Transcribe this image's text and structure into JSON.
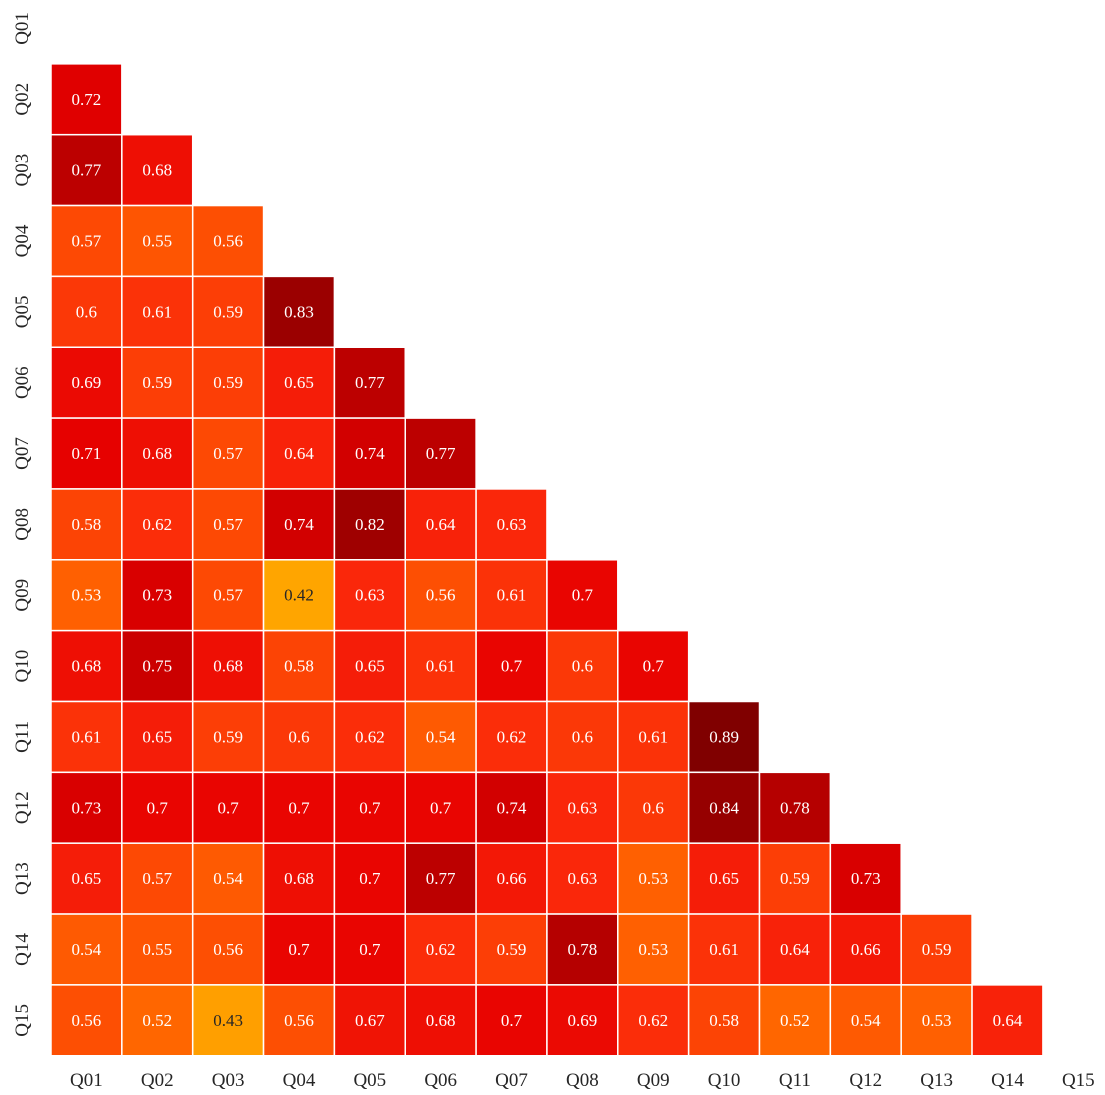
{
  "chart_data": {
    "type": "heatmap",
    "title": "",
    "xlabel": "",
    "ylabel": "",
    "mask": "upper-triangle-including-diagonal",
    "colormap": "autumn_r",
    "color_range": [
      0.42,
      0.89
    ],
    "x_labels": [
      "Q01",
      "Q02",
      "Q03",
      "Q04",
      "Q05",
      "Q06",
      "Q07",
      "Q08",
      "Q09",
      "Q10",
      "Q11",
      "Q12",
      "Q13",
      "Q14",
      "Q15"
    ],
    "y_labels": [
      "Q01",
      "Q02",
      "Q03",
      "Q04",
      "Q05",
      "Q06",
      "Q07",
      "Q08",
      "Q09",
      "Q10",
      "Q11",
      "Q12",
      "Q13",
      "Q14",
      "Q15"
    ],
    "rows": [
      [],
      [
        "0.72"
      ],
      [
        "0.77",
        "0.68"
      ],
      [
        "0.57",
        "0.55",
        "0.56"
      ],
      [
        "0.6",
        "0.61",
        "0.59",
        "0.83"
      ],
      [
        "0.69",
        "0.59",
        "0.59",
        "0.65",
        "0.77"
      ],
      [
        "0.71",
        "0.68",
        "0.57",
        "0.64",
        "0.74",
        "0.77"
      ],
      [
        "0.58",
        "0.62",
        "0.57",
        "0.74",
        "0.82",
        "0.64",
        "0.63"
      ],
      [
        "0.53",
        "0.73",
        "0.57",
        "0.42",
        "0.63",
        "0.56",
        "0.61",
        "0.7"
      ],
      [
        "0.68",
        "0.75",
        "0.68",
        "0.58",
        "0.65",
        "0.61",
        "0.7",
        "0.6",
        "0.7"
      ],
      [
        "0.61",
        "0.65",
        "0.59",
        "0.6",
        "0.62",
        "0.54",
        "0.62",
        "0.6",
        "0.61",
        "0.89"
      ],
      [
        "0.73",
        "0.7",
        "0.7",
        "0.7",
        "0.7",
        "0.7",
        "0.74",
        "0.63",
        "0.6",
        "0.84",
        "0.78"
      ],
      [
        "0.65",
        "0.57",
        "0.54",
        "0.68",
        "0.7",
        "0.77",
        "0.66",
        "0.63",
        "0.53",
        "0.65",
        "0.59",
        "0.73"
      ],
      [
        "0.54",
        "0.55",
        "0.56",
        "0.7",
        "0.7",
        "0.62",
        "0.59",
        "0.78",
        "0.53",
        "0.61",
        "0.64",
        "0.66",
        "0.59"
      ],
      [
        "0.56",
        "0.52",
        "0.43",
        "0.56",
        "0.67",
        "0.68",
        "0.7",
        "0.69",
        "0.62",
        "0.58",
        "0.52",
        "0.54",
        "0.53",
        "0.64"
      ]
    ]
  }
}
